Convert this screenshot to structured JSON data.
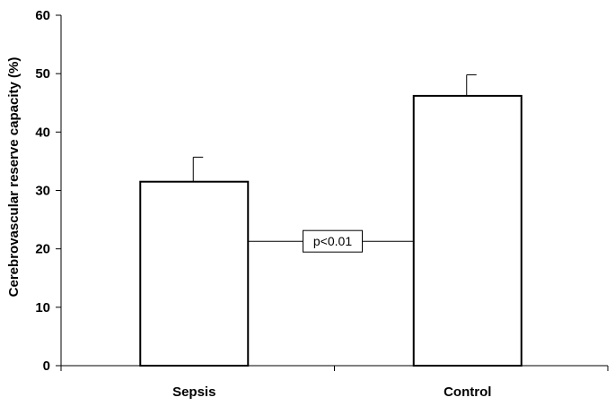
{
  "chart_data": {
    "type": "bar",
    "categories": [
      "Sepsis",
      "Control"
    ],
    "values": [
      31.5,
      46.2
    ],
    "error_upper": [
      35.7,
      49.8
    ],
    "ylabel": "Cerebrovascular reserve capacity (%)",
    "xlabel": "",
    "ylim": [
      0,
      60
    ],
    "yticks": [
      "0",
      "10",
      "20",
      "30",
      "40",
      "50",
      "60"
    ],
    "grid": false,
    "annotation": {
      "text": "p<0.01",
      "y": 21.3
    }
  }
}
